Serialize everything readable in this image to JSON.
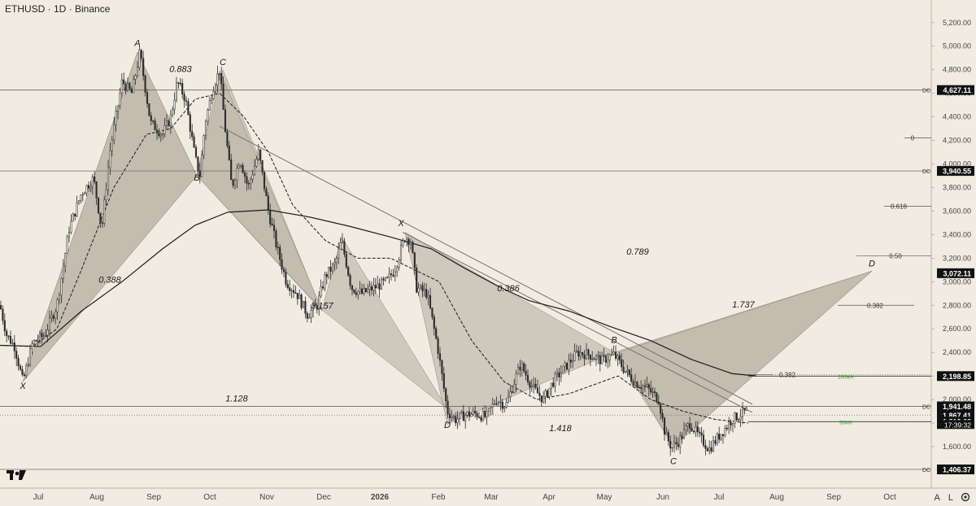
{
  "header": {
    "title": "ETHUSD · 1D · Binance"
  },
  "colors": {
    "background": "#f1ece1",
    "candle": "#2b2b2b",
    "pattern_fill": "#bcb4a8",
    "ma_label": "#1e9e1e",
    "axis_tag": "#111111"
  },
  "chart_data": {
    "type": "candlestick",
    "title": "ETHUSD · 1D · Binance",
    "x_ticks": [
      "Jul",
      "Aug",
      "Sep",
      "Oct",
      "Nov",
      "Dec",
      "2026",
      "Feb",
      "Mar",
      "Apr",
      "May",
      "Jun",
      "Jul",
      "Aug",
      "Sep",
      "Oct"
    ],
    "y_ticks": [
      "5,200.00",
      "5,000.00",
      "4,800.00",
      "4,600.00",
      "4,400.00",
      "4,200.00",
      "4,000.00",
      "3,800.00",
      "3,600.00",
      "3,400.00",
      "3,200.00",
      "3,000.00",
      "2,800.00",
      "2,600.00",
      "2,400.00",
      "2,200.00",
      "2,000.00",
      "1,800.00",
      "1,600.00"
    ],
    "ylim": [
      1380,
      5300
    ],
    "price_path": [
      [
        0,
        2800
      ],
      [
        8,
        2550
      ],
      [
        18,
        2450
      ],
      [
        28,
        2150
      ],
      [
        40,
        2480
      ],
      [
        55,
        2550
      ],
      [
        70,
        2800
      ],
      [
        85,
        3450
      ],
      [
        100,
        3750
      ],
      [
        115,
        3880
      ],
      [
        125,
        3450
      ],
      [
        135,
        4100
      ],
      [
        150,
        4700
      ],
      [
        162,
        4600
      ],
      [
        172,
        4950
      ],
      [
        185,
        4350
      ],
      [
        200,
        4250
      ],
      [
        210,
        4400
      ],
      [
        218,
        4700
      ],
      [
        228,
        4550
      ],
      [
        240,
        4050
      ],
      [
        246,
        3900
      ],
      [
        252,
        4350
      ],
      [
        262,
        4650
      ],
      [
        270,
        4800
      ],
      [
        276,
        4350
      ],
      [
        285,
        3800
      ],
      [
        295,
        4050
      ],
      [
        305,
        3800
      ],
      [
        318,
        4100
      ],
      [
        330,
        3600
      ],
      [
        340,
        3300
      ],
      [
        352,
        3000
      ],
      [
        365,
        2900
      ],
      [
        378,
        2720
      ],
      [
        390,
        2800
      ],
      [
        400,
        3050
      ],
      [
        412,
        3150
      ],
      [
        420,
        3350
      ],
      [
        432,
        2950
      ],
      [
        445,
        2900
      ],
      [
        460,
        2950
      ],
      [
        475,
        3000
      ],
      [
        485,
        3100
      ],
      [
        498,
        3380
      ],
      [
        505,
        3350
      ],
      [
        512,
        2950
      ],
      [
        525,
        2900
      ],
      [
        538,
        2450
      ],
      [
        550,
        1900
      ],
      [
        560,
        1830
      ],
      [
        572,
        1870
      ],
      [
        585,
        1880
      ],
      [
        598,
        1850
      ],
      [
        610,
        2000
      ],
      [
        622,
        1950
      ],
      [
        640,
        2300
      ],
      [
        655,
        2100
      ],
      [
        668,
        2000
      ],
      [
        680,
        2150
      ],
      [
        692,
        2250
      ],
      [
        710,
        2400
      ],
      [
        725,
        2380
      ],
      [
        740,
        2330
      ],
      [
        755,
        2380
      ],
      [
        768,
        2250
      ],
      [
        780,
        2150
      ],
      [
        795,
        2100
      ],
      [
        810,
        2000
      ],
      [
        818,
        1700
      ],
      [
        826,
        1590
      ],
      [
        835,
        1650
      ],
      [
        848,
        1800
      ],
      [
        860,
        1680
      ],
      [
        872,
        1580
      ],
      [
        885,
        1700
      ],
      [
        900,
        1830
      ],
      [
        912,
        1880
      ],
      [
        918,
        1900
      ]
    ],
    "ma_200": [
      [
        0,
        2460
      ],
      [
        50,
        2450
      ],
      [
        100,
        2750
      ],
      [
        150,
        3000
      ],
      [
        200,
        3280
      ],
      [
        240,
        3480
      ],
      [
        280,
        3590
      ],
      [
        330,
        3610
      ],
      [
        380,
        3550
      ],
      [
        430,
        3470
      ],
      [
        480,
        3380
      ],
      [
        530,
        3280
      ],
      [
        570,
        3120
      ],
      [
        610,
        2970
      ],
      [
        650,
        2840
      ],
      [
        700,
        2750
      ],
      [
        750,
        2620
      ],
      [
        800,
        2500
      ],
      [
        850,
        2340
      ],
      [
        900,
        2220
      ],
      [
        930,
        2200
      ]
    ],
    "ma_50": [
      [
        0,
        2460
      ],
      [
        40,
        2450
      ],
      [
        70,
        2600
      ],
      [
        100,
        3100
      ],
      [
        140,
        3800
      ],
      [
        180,
        4250
      ],
      [
        210,
        4300
      ],
      [
        240,
        4550
      ],
      [
        270,
        4600
      ],
      [
        300,
        4400
      ],
      [
        330,
        4100
      ],
      [
        360,
        3650
      ],
      [
        400,
        3350
      ],
      [
        440,
        3200
      ],
      [
        480,
        3200
      ],
      [
        510,
        3100
      ],
      [
        540,
        3000
      ],
      [
        580,
        2500
      ],
      [
        620,
        2150
      ],
      [
        660,
        2000
      ],
      [
        700,
        2050
      ],
      [
        740,
        2150
      ],
      [
        760,
        2200
      ],
      [
        800,
        2000
      ],
      [
        840,
        1900
      ],
      [
        880,
        1830
      ],
      [
        920,
        1800
      ]
    ],
    "annotations": [
      {
        "text": "A",
        "x": 169,
        "price": 5000
      },
      {
        "text": "0.883",
        "x": 222,
        "price": 4780
      },
      {
        "text": "C",
        "x": 274,
        "price": 4840
      },
      {
        "text": "B",
        "x": 242,
        "price": 3860
      },
      {
        "text": "X",
        "x": 28,
        "price": 2090
      },
      {
        "text": "0.388",
        "x": 135,
        "price": 2990
      },
      {
        "text": "3.157",
        "x": 396,
        "price": 2770
      },
      {
        "text": "X",
        "x": 493,
        "price": 3470
      },
      {
        "text": "0.386",
        "x": 625,
        "price": 2920
      },
      {
        "text": "0.789",
        "x": 784,
        "price": 3230
      },
      {
        "text": "B",
        "x": 755,
        "price": 2480
      },
      {
        "text": "1.737",
        "x": 914,
        "price": 2780
      },
      {
        "text": "D",
        "x": 1072,
        "price": 3130
      },
      {
        "text": "1.128",
        "x": 291,
        "price": 1985
      },
      {
        "text": "D",
        "x": 550,
        "price": 1760
      },
      {
        "text": "1.418",
        "x": 689,
        "price": 1730
      },
      {
        "text": "C",
        "x": 828,
        "price": 1450
      }
    ],
    "horizontal_levels": [
      {
        "price": 4627.11,
        "label": "4,627.11",
        "tag": "DC",
        "style": "solid"
      },
      {
        "price": 3940.55,
        "label": "3,940.55",
        "tag": "DC",
        "style": "solid"
      },
      {
        "price": 3072.11,
        "label": "3,072.11",
        "tag": "",
        "style": "none"
      },
      {
        "price": 2198.85,
        "label": "2,198.85",
        "tag": "",
        "style": "none"
      },
      {
        "price": 1941.48,
        "label": "1,941.48",
        "tag": "DC",
        "style": "solid"
      },
      {
        "price": 1867.41,
        "label": "1,867.41",
        "tag": "",
        "style": "dotted"
      },
      {
        "price": 1812.68,
        "label": "1,812.68",
        "tag": "",
        "style": "none"
      },
      {
        "price": 1406.37,
        "label": "1,406.37",
        "tag": "DC",
        "style": "solid"
      }
    ],
    "countdown": "17:39:32",
    "fib_labels": [
      {
        "text": "0",
        "price": 4220
      },
      {
        "text": "0.618",
        "price": 3640
      },
      {
        "text": "0.50",
        "price": 3220
      },
      {
        "text": "0.382",
        "price": 2800
      },
      {
        "text": "0.382",
        "price": 2210
      }
    ],
    "ma_labels": [
      {
        "text": "200MA",
        "price": 2198.85
      },
      {
        "text": "50MA",
        "price": 1812
      }
    ]
  },
  "footer": {
    "auto_label": "A",
    "log_label": "L",
    "settings_icon": "gear-icon"
  }
}
